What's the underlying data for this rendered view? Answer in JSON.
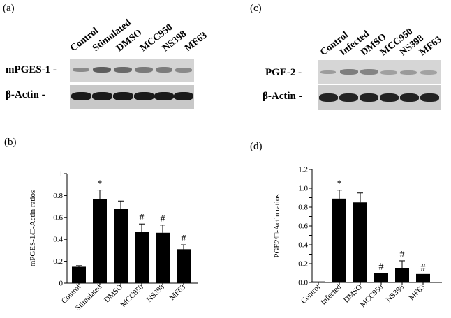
{
  "panels": {
    "a": "(a)",
    "b": "(b)",
    "c": "(c)",
    "d": "(d)"
  },
  "blot_left": {
    "lanes": [
      "Control",
      "Stimulated",
      "DMSO",
      "MCC950",
      "NS398",
      "MF63"
    ],
    "rows": [
      "mPGES-1 -",
      "β-Actin -"
    ]
  },
  "blot_right": {
    "lanes": [
      "Control",
      "Infected",
      "DMSO",
      "MCC950",
      "NS398",
      "MF63"
    ],
    "rows": [
      "PGE-2 -",
      "β-Actin -"
    ]
  },
  "chart_data": [
    {
      "type": "bar",
      "panel": "(b)",
      "categories": [
        "Control",
        "Stimulated",
        "DMSO",
        "MCC950",
        "NS398",
        "MF63"
      ],
      "values": [
        0.15,
        0.77,
        0.68,
        0.47,
        0.46,
        0.31
      ],
      "errors": [
        0.01,
        0.08,
        0.07,
        0.07,
        0.07,
        0.04
      ],
      "annotations": [
        "",
        "*",
        "",
        "#",
        "#",
        "#"
      ],
      "ylabel": "mPGES-1/□-Actin ratios",
      "ylim": [
        0,
        1.0
      ],
      "yticks": [
        "0",
        "0.2",
        "0.4",
        "0.6",
        "0.8",
        "1"
      ],
      "bar_color": "#000000"
    },
    {
      "type": "bar",
      "panel": "(d)",
      "categories": [
        "Control",
        "Infected",
        "DMSO",
        "MCC950",
        "NS398",
        "MF63"
      ],
      "values": [
        0.01,
        0.89,
        0.85,
        0.1,
        0.15,
        0.09
      ],
      "errors": [
        0.0,
        0.09,
        0.1,
        0.0,
        0.08,
        0.0
      ],
      "annotations": [
        "",
        "*",
        "",
        "#",
        "#",
        "#"
      ],
      "ylabel": "PGE2/□-Actin ratios",
      "ylim": [
        0,
        1.2
      ],
      "yticks": [
        "0.0",
        "0.1",
        "0.2",
        "0.3",
        "0.4",
        "0.5",
        "0.6",
        "0.7",
        "0.8",
        "0.9",
        "1.0",
        "1.1",
        "1.2"
      ],
      "yticks_labeled": [
        "0.0",
        "0.2",
        "0.4",
        "0.6",
        "0.8",
        "1.0",
        "1.2"
      ],
      "bar_color": "#000000"
    }
  ]
}
